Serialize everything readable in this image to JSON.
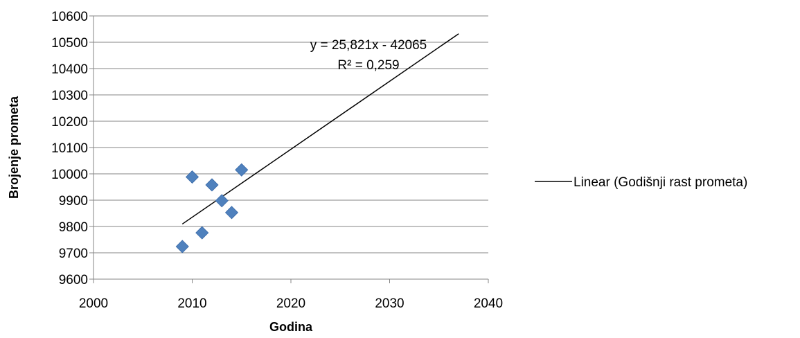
{
  "chart_data": {
    "type": "scatter",
    "title": "",
    "xlabel": "Godina",
    "ylabel": "Brojenje prometa",
    "xlim": [
      2000,
      2040
    ],
    "ylim": [
      9600,
      10600
    ],
    "x_ticks": [
      2000,
      2010,
      2020,
      2030,
      2040
    ],
    "y_ticks": [
      9600,
      9700,
      9800,
      9900,
      10000,
      10100,
      10200,
      10300,
      10400,
      10500,
      10600
    ],
    "grid": "horizontal",
    "series": [
      {
        "points": [
          {
            "x": 2009,
            "y": 9724
          },
          {
            "x": 2010,
            "y": 9988
          },
          {
            "x": 2011,
            "y": 9776
          },
          {
            "x": 2012,
            "y": 9958
          },
          {
            "x": 2013,
            "y": 9898
          },
          {
            "x": 2014,
            "y": 9853
          },
          {
            "x": 2015,
            "y": 10015
          }
        ],
        "color": "#4F81BD",
        "marker": "diamond"
      }
    ],
    "trendline": {
      "name": "Linear (Godišnji rast prometa)",
      "slope": 25.821,
      "intercept": -42065,
      "x_start": 2009,
      "x_end": 2037,
      "color": "#000000"
    },
    "annotations": {
      "equation": "y = 25,821x - 42065",
      "r_squared": "R² = 0,259"
    },
    "legend": {
      "position": "right",
      "entries": [
        "Linear (Godišnji rast prometa)"
      ]
    }
  }
}
